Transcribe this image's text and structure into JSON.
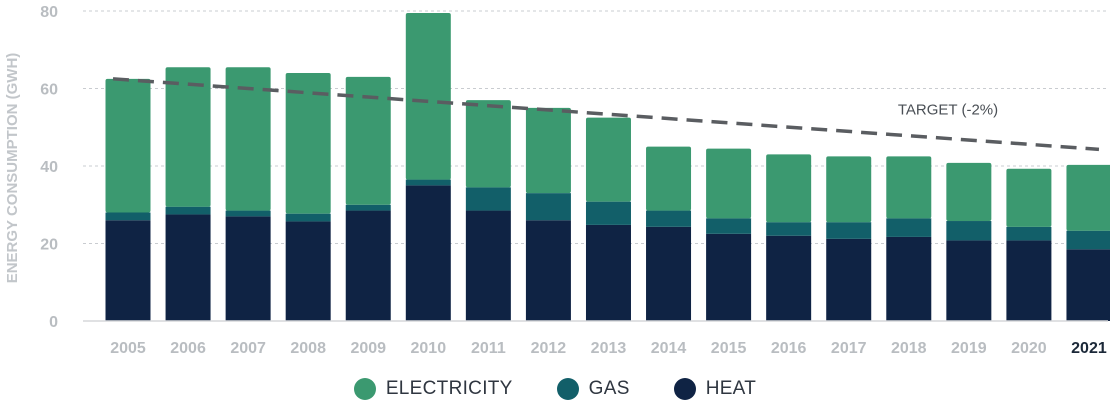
{
  "chart_data": {
    "type": "bar",
    "stacked": true,
    "categories": [
      "2005",
      "2006",
      "2007",
      "2008",
      "2009",
      "2010",
      "2011",
      "2012",
      "2013",
      "2014",
      "2015",
      "2016",
      "2017",
      "2018",
      "2019",
      "2020",
      "2021"
    ],
    "highlighted_category": "2021",
    "series": [
      {
        "name": "HEAT",
        "color": "#0f2344",
        "values": [
          26,
          27.5,
          27,
          25.7,
          28.5,
          35,
          28.5,
          26,
          24.8,
          24.3,
          22.5,
          22,
          21.2,
          21.7,
          20.8,
          20.8,
          18.5
        ]
      },
      {
        "name": "GAS",
        "color": "#125f69",
        "values": [
          2,
          2,
          1.5,
          2,
          1.5,
          1.5,
          6,
          7,
          6,
          4.2,
          4,
          3.5,
          4.3,
          4.8,
          5,
          3.5,
          4.8
        ]
      },
      {
        "name": "ELECTRICITY",
        "color": "#3b9970",
        "values": [
          34.5,
          36,
          37,
          36.3,
          33,
          43,
          22.5,
          22,
          21.7,
          16.5,
          18,
          17.5,
          17,
          16,
          15,
          15,
          17
        ]
      }
    ],
    "target_line": {
      "label": "TARGET (-2%)",
      "start": {
        "x": "2005",
        "y": 62.5
      },
      "end": {
        "x": "2021",
        "y": 44.3
      },
      "color": "#5a5d61",
      "style": "dashed"
    },
    "ylabel": "ENERGY CONSUMPTION (GWH)",
    "xlabel": "",
    "ylim": [
      0,
      80
    ],
    "yticks": [
      0,
      20,
      40,
      60,
      80
    ],
    "grid": true,
    "legend_position": "bottom-center",
    "legend_order": [
      "ELECTRICITY",
      "GAS",
      "HEAT"
    ]
  }
}
